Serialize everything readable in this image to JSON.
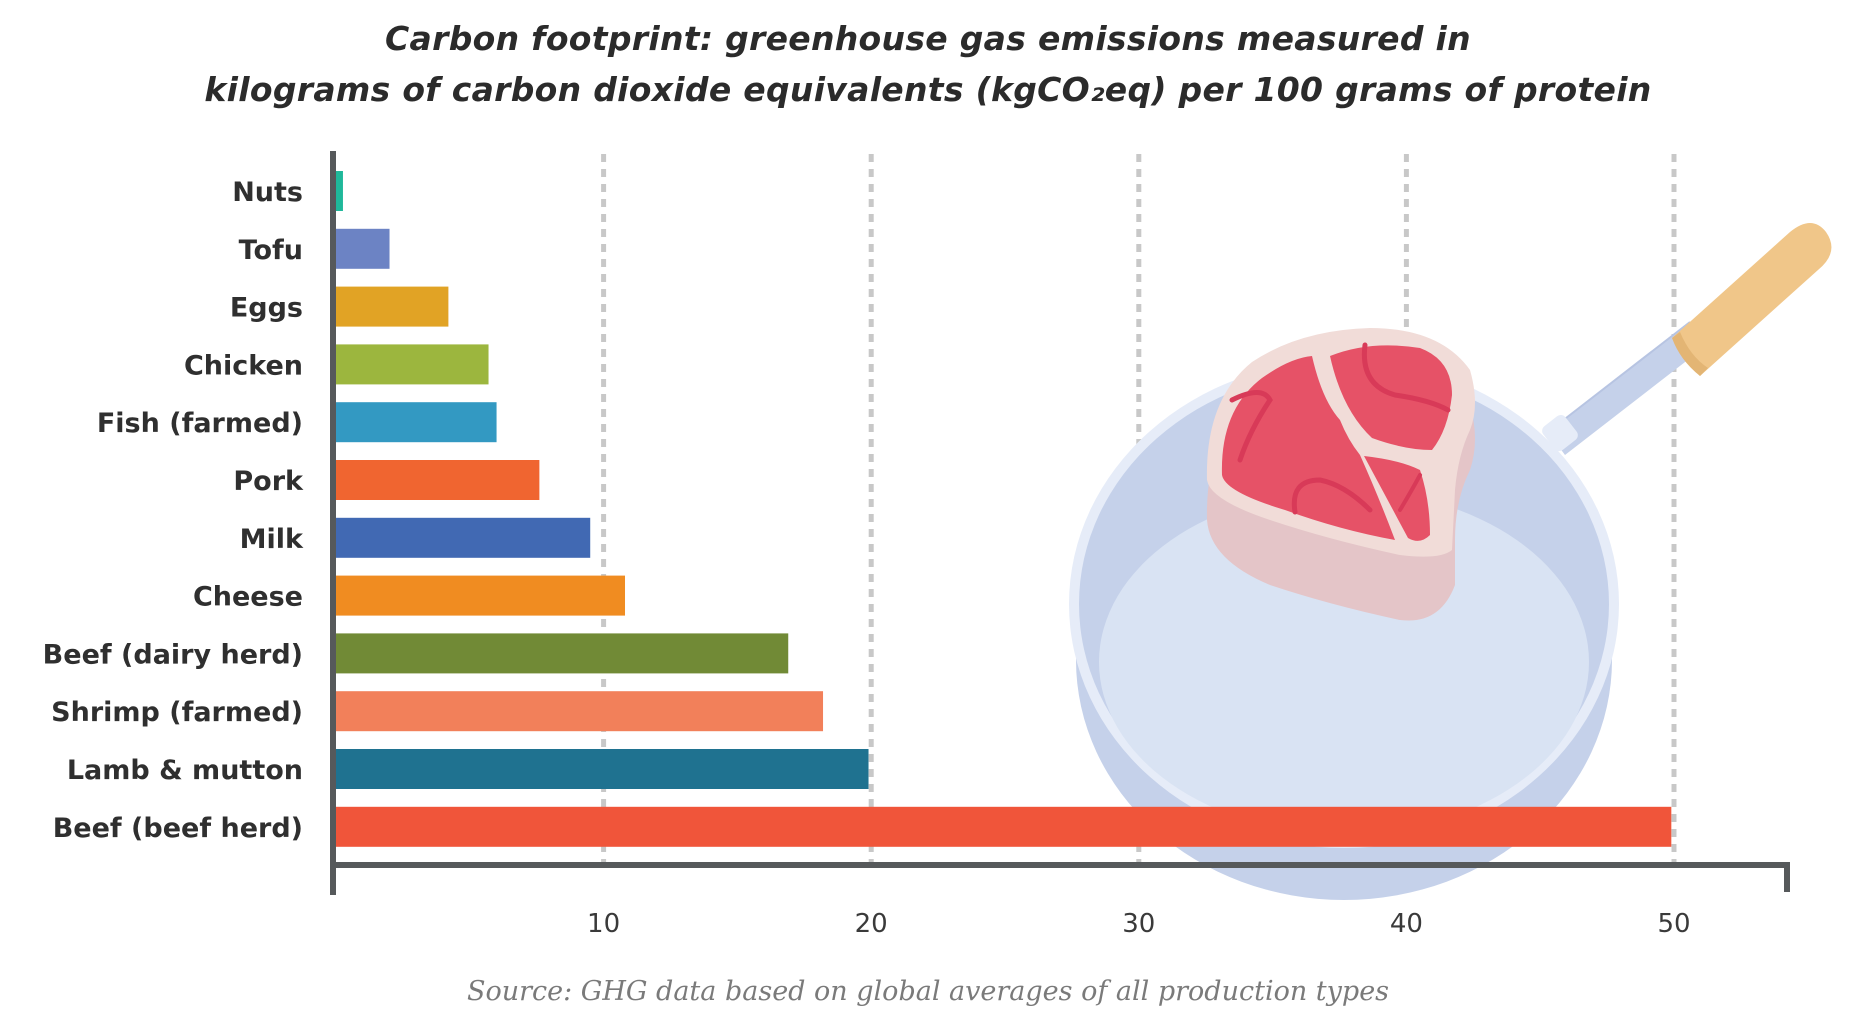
{
  "chart_data": {
    "type": "bar",
    "orientation": "horizontal",
    "title": "Carbon footprint: greenhouse gas emissions measured in kilograms of carbon dioxide equivalents (kgCO₂eq) per 100 grams of protein",
    "title_lines": [
      "Carbon footprint: greenhouse gas emissions measured in",
      "kilograms of carbon dioxide equivalents (kgCO₂eq) per 100 grams of protein"
    ],
    "xlabel": "",
    "ylabel": "",
    "unit": "kgCO₂eq per 100 g protein",
    "xlim": [
      0,
      54
    ],
    "xticks": [
      10,
      20,
      30,
      40,
      50
    ],
    "grid": "vertical dashed",
    "legend": "none",
    "categories": [
      "Nuts",
      "Tofu",
      "Eggs",
      "Chicken",
      "Fish (farmed)",
      "Pork",
      "Milk",
      "Cheese",
      "Beef (dairy herd)",
      "Shrimp (farmed)",
      "Lamb & mutton",
      "Beef (beef herd)"
    ],
    "values": [
      0.26,
      2.0,
      4.2,
      5.7,
      6.0,
      7.6,
      9.5,
      10.8,
      16.9,
      18.2,
      19.9,
      49.9
    ],
    "colors": [
      "#1fb89a",
      "#6c83c4",
      "#e1a325",
      "#9cb63e",
      "#3399c2",
      "#f06530",
      "#4169b3",
      "#f08c21",
      "#718a36",
      "#f2805a",
      "#1f7290",
      "#f0553a"
    ],
    "source": "Source: GHG data based on global averages of all production types",
    "illustration": "frying-pan-with-steak"
  },
  "colors": {
    "axis": "#56595b",
    "grid": "#c8c8c8",
    "pan_outer": "#c5d1ea",
    "pan_rim": "#e6ecf8",
    "pan_floor": "#d9e3f3",
    "handle_grip": "#f0c689",
    "steak_meat": "#e65267",
    "steak_vein": "#d83a58",
    "steak_fat": "#f1dcd8",
    "steak_side": "#e4c5c8"
  }
}
